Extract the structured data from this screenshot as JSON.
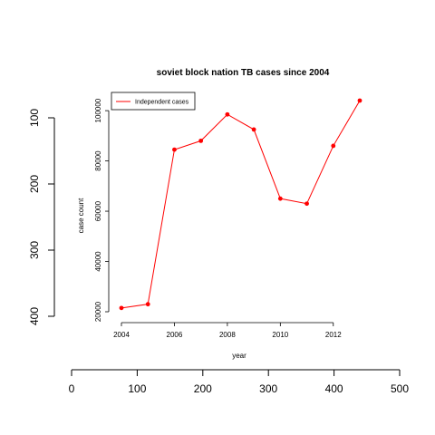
{
  "chart_data": [
    {
      "type": "line",
      "title": "soviet block nation TB cases since 2004",
      "xlabel": "year",
      "ylabel": "case count",
      "x": [
        2004,
        2005,
        2006,
        2007,
        2008,
        2009,
        2010,
        2011,
        2012,
        2013
      ],
      "series": [
        {
          "name": "Independent cases",
          "color": "#ff0000",
          "values": [
            21500,
            23000,
            84500,
            88000,
            98500,
            92500,
            65000,
            63000,
            86000,
            104000
          ]
        }
      ],
      "xlim": [
        2004,
        2013
      ],
      "ylim": [
        20000,
        104000
      ],
      "xticks": [
        "2004",
        "2006",
        "2008",
        "2010",
        "2012"
      ],
      "yticks": [
        "20000",
        "40000",
        "60000",
        "80000",
        "100000"
      ],
      "legend": "top-left",
      "grid": false
    },
    {
      "type": "scatter",
      "xticks": [
        "0",
        "100",
        "200",
        "300",
        "400",
        "500"
      ],
      "yticks": [
        "100",
        "200",
        "300",
        "400"
      ],
      "xlim": [
        0,
        500
      ],
      "ylim": [
        400,
        100
      ],
      "grid": false
    }
  ]
}
